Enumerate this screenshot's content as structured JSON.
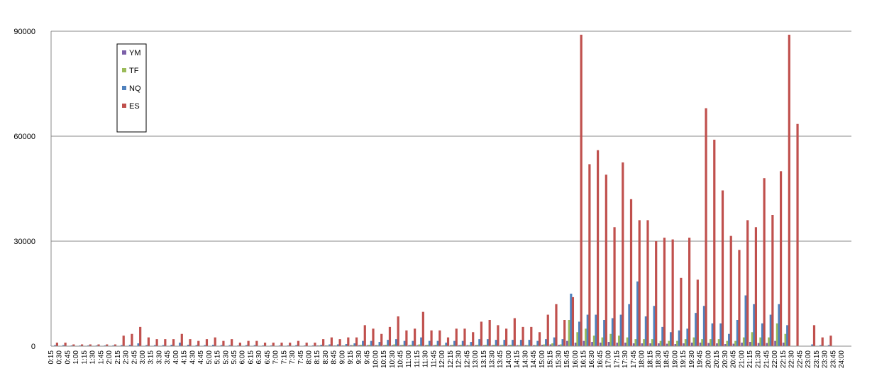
{
  "chart_data": {
    "type": "bar",
    "categories": [
      "0:15",
      "0:30",
      "0:45",
      "1:00",
      "1:15",
      "1:30",
      "1:45",
      "2:00",
      "2:15",
      "2:30",
      "2:45",
      "3:00",
      "3:15",
      "3:30",
      "3:45",
      "4:00",
      "4:15",
      "4:30",
      "4:45",
      "5:00",
      "5:15",
      "5:30",
      "5:45",
      "6:00",
      "6:15",
      "6:30",
      "6:45",
      "7:00",
      "7:15",
      "7:30",
      "7:45",
      "8:00",
      "8:15",
      "8:30",
      "8:45",
      "9:00",
      "9:15",
      "9:30",
      "9:45",
      "10:00",
      "10:15",
      "10:30",
      "10:45",
      "11:00",
      "11:15",
      "11:30",
      "11:45",
      "12:00",
      "12:15",
      "12:30",
      "12:45",
      "13:00",
      "13:15",
      "13:30",
      "13:45",
      "14:00",
      "14:15",
      "14:30",
      "14:45",
      "15:00",
      "15:15",
      "15:30",
      "15:45",
      "16:00",
      "16:15",
      "16:30",
      "16:45",
      "17:00",
      "17:15",
      "17:30",
      "17:45",
      "18:00",
      "18:15",
      "18:30",
      "18:45",
      "19:00",
      "19:15",
      "19:30",
      "19:45",
      "20:00",
      "20:15",
      "20:30",
      "20:45",
      "21:00",
      "21:15",
      "21:30",
      "21:45",
      "22:00",
      "22:15",
      "22:30",
      "22:45",
      "23:00",
      "23:15",
      "23:30",
      "23:45",
      "24:00"
    ],
    "series": [
      {
        "name": "YM",
        "color": "#7b5fa8",
        "values": [
          100,
          100,
          100,
          100,
          100,
          100,
          100,
          100,
          100,
          100,
          100,
          100,
          100,
          100,
          100,
          100,
          100,
          100,
          100,
          100,
          100,
          100,
          100,
          100,
          100,
          100,
          100,
          100,
          100,
          100,
          100,
          100,
          200,
          200,
          200,
          200,
          300,
          300,
          300,
          300,
          300,
          300,
          300,
          300,
          300,
          300,
          300,
          200,
          300,
          300,
          300,
          300,
          300,
          300,
          300,
          300,
          300,
          300,
          300,
          400,
          500,
          400,
          1500,
          1000,
          1500,
          1200,
          1000,
          1200,
          1000,
          1000,
          800,
          800,
          800,
          800,
          700,
          600,
          800,
          1000,
          1000,
          900,
          800,
          600,
          700,
          1000,
          1200,
          900,
          900,
          1500,
          1000,
          0,
          0,
          100,
          100,
          100,
          0,
          0
        ]
      },
      {
        "name": "TF",
        "color": "#9bbb59",
        "values": [
          100,
          100,
          100,
          100,
          100,
          100,
          100,
          100,
          100,
          100,
          100,
          100,
          100,
          100,
          100,
          100,
          100,
          100,
          100,
          100,
          100,
          100,
          100,
          100,
          100,
          100,
          100,
          100,
          100,
          100,
          100,
          100,
          200,
          200,
          200,
          200,
          300,
          400,
          400,
          300,
          400,
          500,
          400,
          400,
          500,
          400,
          400,
          300,
          400,
          400,
          300,
          400,
          400,
          400,
          400,
          400,
          300,
          300,
          300,
          500,
          800,
          500,
          7500,
          4000,
          5000,
          3000,
          2500,
          3500,
          3000,
          2500,
          2000,
          2000,
          2000,
          1500,
          1500,
          1500,
          2000,
          2500,
          2000,
          2000,
          2000,
          1500,
          1500,
          2500,
          4000,
          2500,
          2500,
          6500,
          3500,
          0,
          0,
          100,
          100,
          100,
          0,
          0
        ]
      },
      {
        "name": "NQ",
        "color": "#4f81bd",
        "values": [
          300,
          300,
          200,
          200,
          200,
          200,
          200,
          200,
          300,
          400,
          800,
          300,
          300,
          300,
          400,
          1000,
          400,
          300,
          300,
          400,
          300,
          300,
          200,
          300,
          300,
          200,
          200,
          200,
          200,
          300,
          200,
          200,
          400,
          500,
          500,
          600,
          800,
          1500,
          1500,
          1200,
          1800,
          2000,
          1500,
          1500,
          2500,
          1500,
          1500,
          1000,
          1500,
          1500,
          1200,
          2000,
          2000,
          1800,
          1800,
          1800,
          1800,
          1800,
          1500,
          2000,
          2500,
          2000,
          15000,
          7000,
          9000,
          9000,
          7500,
          8000,
          9000,
          12000,
          18500,
          8500,
          11500,
          5500,
          4000,
          4500,
          5000,
          9500,
          11500,
          6500,
          6500,
          3500,
          7500,
          14500,
          12000,
          6500,
          9000,
          12000,
          6000,
          0,
          0,
          500,
          300,
          300,
          0,
          0
        ]
      },
      {
        "name": "ES",
        "color": "#c0504d",
        "values": [
          1000,
          1000,
          500,
          500,
          500,
          500,
          500,
          500,
          3000,
          3500,
          5500,
          2500,
          2000,
          2000,
          2000,
          3500,
          2000,
          1500,
          2000,
          2500,
          1500,
          2000,
          1000,
          1500,
          1500,
          1000,
          1000,
          1000,
          1000,
          1500,
          1000,
          1000,
          2000,
          2500,
          2000,
          2500,
          2500,
          6000,
          5000,
          3500,
          5500,
          8500,
          4500,
          5000,
          9800,
          4500,
          4500,
          2500,
          5000,
          5000,
          4000,
          7000,
          7500,
          6000,
          5000,
          8000,
          5500,
          5500,
          4000,
          9000,
          12000,
          7500,
          14000,
          89000,
          52000,
          56000,
          49000,
          34000,
          52500,
          42000,
          36000,
          36000,
          30000,
          31000,
          30500,
          19500,
          31000,
          19000,
          68000,
          59000,
          44500,
          31500,
          27500,
          36000,
          34000,
          48000,
          37500,
          50000,
          89000,
          63500,
          0,
          6000,
          2500,
          3000,
          0,
          0
        ]
      }
    ],
    "ylim": [
      0,
      90000
    ],
    "yticks": [
      0,
      30000,
      60000,
      90000
    ],
    "grid": true,
    "legend": "upper-left"
  }
}
